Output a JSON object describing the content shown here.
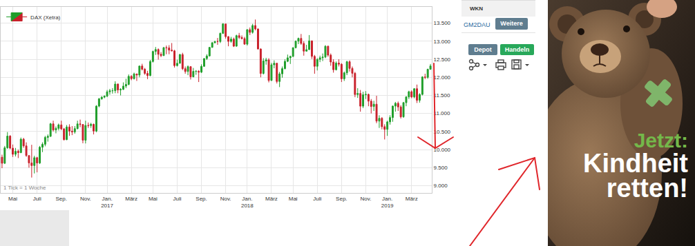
{
  "chart_data": {
    "type": "candlestick",
    "series": [
      {
        "name": "DAX (Xetra)",
        "colors": {
          "increasing": "#1f9e2a",
          "decreasing": "#c8202a"
        }
      }
    ],
    "legend": "top-left",
    "grid": true,
    "annotations": [
      "1 Tick = 1 Woche"
    ],
    "categories": [
      null,
      null,
      null,
      null,
      "Mai",
      null,
      null,
      null,
      null,
      null,
      null,
      null,
      null,
      "Juli",
      null,
      null,
      null,
      null,
      null,
      null,
      null,
      null,
      "Sep.",
      null,
      null,
      null,
      null,
      null,
      null,
      null,
      null,
      "Nov.",
      null,
      null,
      null,
      null,
      null,
      null,
      null,
      "Jan.\n2017",
      null,
      null,
      null,
      null,
      null,
      null,
      null,
      null,
      "März",
      null,
      null,
      null,
      null,
      null,
      null,
      null,
      "Mai",
      null,
      null,
      null,
      null,
      null,
      null,
      null,
      null,
      "Juli",
      null,
      null,
      null,
      null,
      null,
      null,
      null,
      null,
      "Sep.",
      null,
      null,
      null,
      null,
      null,
      null,
      null,
      null,
      "Nov.",
      null,
      null,
      null,
      null,
      null,
      null,
      null,
      "Jan.\n2018",
      null,
      null,
      null,
      null,
      null,
      null,
      null,
      null,
      "März",
      null,
      null,
      null,
      null,
      null,
      null,
      null,
      "Mai",
      null,
      null,
      null,
      null,
      null,
      null,
      null,
      null,
      "Juli",
      null,
      null,
      null,
      null,
      null,
      null,
      null,
      null,
      "Sep.",
      null,
      null,
      null,
      null,
      null,
      null,
      null,
      null,
      "Nov.",
      null,
      null,
      null,
      null,
      null,
      null,
      null,
      "Jan.\n2019",
      null,
      null,
      null,
      null,
      null,
      null,
      null,
      null,
      "März",
      null,
      null,
      null,
      null,
      null,
      null,
      null
    ],
    "open": [
      9790,
      9622,
      10051,
      10373,
      10039,
      9870,
      9952,
      9916,
      10287,
      10103,
      9834,
      9631,
      9557,
      9776,
      9629,
      10066,
      10147,
      10337,
      10367,
      10713,
      10544,
      10587,
      10684,
      10573,
      10276,
      10626,
      10511,
      10490,
      10580,
      10711,
      10696,
      10259,
      10668,
      10665,
      10700,
      10513,
      11203,
      11404,
      11450,
      11481,
      11599,
      11629,
      11630,
      11814,
      11651,
      11666,
      11757,
      11804,
      12027,
      11963,
      12095,
      12064,
      12313,
      12225,
      12109,
      12049,
      12438,
      12717,
      12770,
      12638,
      12602,
      12822,
      12815,
      12753,
      12733,
      12325,
      12389,
      12631,
      12240,
      12162,
      12297,
      12014,
      12165,
      12168,
      12143,
      12304,
      12519,
      12592,
      12829,
      12956,
      12992,
      12991,
      13218,
      13478,
      13127,
      12994,
      13060,
      12862,
      13154,
      13104,
      13072,
      12918,
      13320,
      13245,
      13434,
      13340,
      12785,
      12107,
      12452,
      12483,
      11914,
      12346,
      12390,
      11886,
      12097,
      12241,
      12442,
      12540,
      12580,
      12820,
      13001,
      13078,
      12938,
      12724,
      12767,
      13011,
      12580,
      12306,
      12497,
      12541,
      12561,
      12860,
      12616,
      12424,
      12211,
      12394,
      12364,
      11960,
      12124,
      12431,
      12247,
      12112,
      11524,
      11554,
      11201,
      11519,
      11529,
      11341,
      11193,
      11257,
      10788,
      10866,
      10634,
      10559,
      10767,
      10887,
      11205,
      11282,
      11181,
      10907,
      11300,
      11458,
      11602,
      11458,
      11686,
      11364,
      11526,
      12010,
      11999,
      12222
    ],
    "high": [
      9860,
      10100,
      10486,
      10400,
      10140,
      10045,
      10000,
      10333,
      10325,
      10200,
      9850,
      10133,
      9830,
      9800,
      10100,
      10200,
      10380,
      10420,
      10740,
      10800,
      10640,
      10720,
      10800,
      10600,
      10680,
      10700,
      10650,
      10650,
      10800,
      10830,
      10700,
      10800,
      10750,
      10740,
      10720,
      11230,
      11430,
      11480,
      11500,
      11650,
      11680,
      11700,
      11890,
      11830,
      11700,
      11860,
      11960,
      12080,
      12060,
      12130,
      12100,
      12320,
      12375,
      12260,
      12180,
      12480,
      12740,
      12840,
      12800,
      12700,
      12840,
      12880,
      12890,
      12950,
      12760,
      12490,
      12650,
      12680,
      12300,
      12330,
      12300,
      12260,
      12200,
      12200,
      12360,
      12530,
      12640,
      12840,
      12980,
      13010,
      13090,
      13240,
      13500,
      13480,
      13140,
      13120,
      13100,
      13180,
      13230,
      13160,
      13120,
      13330,
      13380,
      13480,
      13600,
      13350,
      12800,
      12530,
      12540,
      12530,
      12400,
      12470,
      12400,
      12150,
      12300,
      12500,
      12630,
      12600,
      12830,
      13020,
      13100,
      13200,
      13000,
      12900,
      13170,
      13000,
      12620,
      12530,
      12600,
      12660,
      12890,
      12880,
      12660,
      12500,
      12440,
      12500,
      12390,
      12160,
      12460,
      12470,
      12300,
      12150,
      11700,
      11650,
      11600,
      11620,
      11550,
      11400,
      11350,
      11490,
      10950,
      10900,
      10700,
      10800,
      10950,
      11220,
      11320,
      11330,
      11230,
      11320,
      11480,
      11630,
      11640,
      11700,
      11800,
      11560,
      12030,
      12100,
      12240,
      12370
    ],
    "low": [
      9485,
      9600,
      10020,
      10010,
      9795,
      9810,
      9765,
      9900,
      10050,
      9800,
      9500,
      9226,
      9340,
      9370,
      9600,
      9930,
      10090,
      10220,
      10350,
      10500,
      10450,
      10530,
      10540,
      10250,
      10260,
      10380,
      10400,
      10440,
      10560,
      10620,
      10175,
      10170,
      10600,
      10600,
      10420,
      10480,
      11170,
      11380,
      11420,
      11450,
      11520,
      11550,
      11560,
      11560,
      11500,
      11650,
      11700,
      11780,
      11920,
      11940,
      11900,
      12000,
      12190,
      12070,
      11950,
      12030,
      12410,
      12620,
      12490,
      12560,
      12590,
      12640,
      12640,
      12720,
      12270,
      12300,
      12380,
      12200,
      12100,
      12060,
      11940,
      12000,
      12070,
      11870,
      12120,
      12290,
      12480,
      12580,
      12820,
      12940,
      12900,
      12950,
      13200,
      13070,
      12860,
      12960,
      12840,
      12850,
      13060,
      13050,
      12900,
      12880,
      13170,
      13210,
      13300,
      12770,
      12000,
      12080,
      12350,
      11860,
      11900,
      12250,
      11830,
      11730,
      11990,
      12220,
      12420,
      12370,
      12560,
      12800,
      12920,
      12900,
      12600,
      12710,
      12760,
      12510,
      12100,
      12190,
      12420,
      12450,
      12530,
      12570,
      12320,
      12130,
      12190,
      12300,
      11870,
      11900,
      12060,
      12160,
      12000,
      11450,
      11430,
      11050,
      11150,
      11400,
      11200,
      11000,
      11070,
      10730,
      10600,
      10560,
      10280,
      10380,
      10690,
      10770,
      11050,
      11070,
      10860,
      10880,
      11200,
      11400,
      11420,
      11420,
      11290,
      11300,
      11500,
      11950,
      11960,
      12210
    ],
    "close": [
      9622,
      10051,
      10373,
      10039,
      9870,
      9952,
      9916,
      10287,
      10103,
      9834,
      9631,
      9557,
      9776,
      9629,
      10066,
      10147,
      10337,
      10367,
      10713,
      10544,
      10587,
      10684,
      10573,
      10276,
      10626,
      10511,
      10490,
      10580,
      10711,
      10696,
      10259,
      10668,
      10665,
      10700,
      10513,
      11203,
      11404,
      11450,
      11481,
      11599,
      11629,
      11630,
      11814,
      11651,
      11666,
      11757,
      11804,
      12027,
      11963,
      12095,
      12064,
      12313,
      12225,
      12109,
      12049,
      12438,
      12717,
      12770,
      12638,
      12602,
      12822,
      12815,
      12753,
      12733,
      12325,
      12389,
      12631,
      12240,
      12162,
      12297,
      12014,
      12165,
      12168,
      12143,
      12304,
      12519,
      12592,
      12829,
      12956,
      12992,
      12991,
      13218,
      13478,
      13127,
      12994,
      13060,
      12862,
      13154,
      13104,
      13072,
      12918,
      13320,
      13245,
      13434,
      13340,
      12785,
      12107,
      12452,
      12483,
      11914,
      12346,
      12390,
      11886,
      12097,
      12241,
      12442,
      12540,
      12580,
      12820,
      13001,
      13078,
      12938,
      12724,
      12767,
      13011,
      12580,
      12306,
      12497,
      12541,
      12561,
      12860,
      12616,
      12424,
      12211,
      12394,
      12364,
      11960,
      12124,
      12431,
      12247,
      12112,
      11524,
      11554,
      11201,
      11519,
      11529,
      11341,
      11193,
      11257,
      10788,
      10866,
      10634,
      10559,
      10767,
      10887,
      11205,
      11282,
      11181,
      10907,
      11300,
      11458,
      11602,
      11458,
      11686,
      11364,
      11526,
      12010,
      11999,
      12222,
      12315
    ],
    "ylim": [
      8800,
      13950
    ],
    "yticks": [
      {
        "value": 9000,
        "label": "9.000"
      },
      {
        "value": 9500,
        "label": "9.500"
      },
      {
        "value": 10000,
        "label": "10.000"
      },
      {
        "value": 10500,
        "label": "10.500"
      },
      {
        "value": 11000,
        "label": "11.000"
      },
      {
        "value": 11500,
        "label": "11.500"
      },
      {
        "value": 12000,
        "label": "12.000"
      },
      {
        "value": 12500,
        "label": "12.500"
      },
      {
        "value": 13000,
        "label": "13.000"
      },
      {
        "value": 13500,
        "label": "13.500"
      }
    ]
  },
  "sidebar": {
    "header": "WKN",
    "wkn": "GM2DAU",
    "more_button": "Weitere",
    "buttons": [
      "Depot",
      "Handeln"
    ]
  },
  "advert": {
    "lines": [
      "Jetzt:",
      "Kindheit",
      "retten!"
    ]
  }
}
